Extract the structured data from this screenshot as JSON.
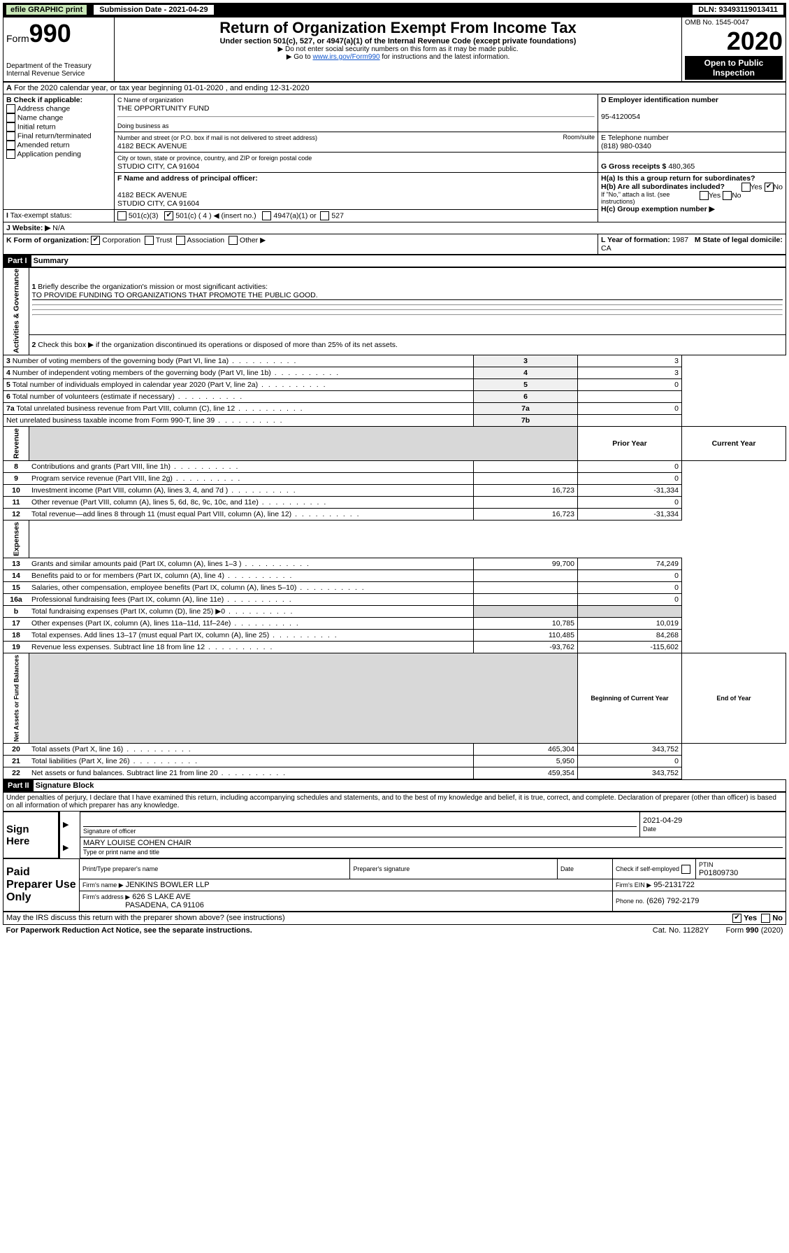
{
  "topbar": {
    "efile": "efile GRAPHIC print",
    "submission": "Submission Date - 2021-04-29",
    "dln": "DLN: 93493119013411"
  },
  "header": {
    "form_prefix": "Form",
    "form_number": "990",
    "title": "Return of Organization Exempt From Income Tax",
    "subtitle": "Under section 501(c), 527, or 4947(a)(1) of the Internal Revenue Code (except private foundations)",
    "note1": "▶ Do not enter social security numbers on this form as it may be made public.",
    "note2_pre": "▶ Go to ",
    "note2_link": "www.irs.gov/Form990",
    "note2_post": " for instructions and the latest information.",
    "dept": "Department of the Treasury\nInternal Revenue Service",
    "omb": "OMB No. 1545-0047",
    "year": "2020",
    "open_public": "Open to Public Inspection"
  },
  "a_line": "For the 2020 calendar year, or tax year beginning 01-01-2020    , and ending 12-31-2020",
  "boxB": {
    "label": "B Check if applicable:",
    "opts": [
      "Address change",
      "Name change",
      "Initial return",
      "Final return/terminated",
      "Amended return",
      "Application pending"
    ]
  },
  "boxC": {
    "label_name": "C Name of organization",
    "org_name": "THE OPPORTUNITY FUND",
    "dba_label": "Doing business as",
    "addr_label": "Number and street (or P.O. box if mail is not delivered to street address)",
    "room_label": "Room/suite",
    "addr": "4182 BECK AVENUE",
    "city_label": "City or town, state or province, country, and ZIP or foreign postal code",
    "city": "STUDIO CITY, CA  91604"
  },
  "boxD": {
    "label": "D Employer identification number",
    "ein": "95-4120054"
  },
  "boxE": {
    "label": "E Telephone number",
    "phone": "(818) 980-0340"
  },
  "boxG": {
    "label": "G Gross receipts $",
    "amount": "480,365"
  },
  "boxF": {
    "label": "F Name and address of principal officer:",
    "addr1": "4182 BECK AVENUE",
    "addr2": "STUDIO CITY, CA  91604"
  },
  "boxH": {
    "a_label": "H(a)  Is this a group return for subordinates?",
    "b_label": "H(b)  Are all subordinates included?",
    "note": "If \"No,\" attach a list. (see instructions)",
    "c_label": "H(c)  Group exemption number ▶",
    "yes": "Yes",
    "no": "No"
  },
  "taxexempt": {
    "label": "Tax-exempt status:",
    "c3": "501(c)(3)",
    "c": "501(c) ( 4 ) ◀ (insert no.)",
    "a1": "4947(a)(1) or",
    "527": "527"
  },
  "website": {
    "label": "Website: ▶",
    "val": "N/A"
  },
  "boxK": {
    "label": "K Form of organization:",
    "corp": "Corporation",
    "trust": "Trust",
    "assoc": "Association",
    "other": "Other ▶"
  },
  "boxL": {
    "label": "L Year of formation:",
    "val": "1987"
  },
  "boxM": {
    "label": "M State of legal domicile:",
    "val": "CA"
  },
  "part1": {
    "label": "Part I",
    "title": "Summary",
    "q1": "Briefly describe the organization's mission or most significant activities:",
    "mission": "TO PROVIDE FUNDING TO ORGANIZATIONS THAT PROMOTE THE PUBLIC GOOD.",
    "q2": "Check this box ▶       if the organization discontinued its operations or disposed of more than 25% of its net assets.",
    "rows_gov": [
      {
        "n": "3",
        "d": "Number of voting members of the governing body (Part VI, line 1a)",
        "c": "3",
        "v": "3"
      },
      {
        "n": "4",
        "d": "Number of independent voting members of the governing body (Part VI, line 1b)",
        "c": "4",
        "v": "3"
      },
      {
        "n": "5",
        "d": "Total number of individuals employed in calendar year 2020 (Part V, line 2a)",
        "c": "5",
        "v": "0"
      },
      {
        "n": "6",
        "d": "Total number of volunteers (estimate if necessary)",
        "c": "6",
        "v": ""
      },
      {
        "n": "7a",
        "d": "Total unrelated business revenue from Part VIII, column (C), line 12",
        "c": "7a",
        "v": "0"
      },
      {
        "n": "",
        "d": "Net unrelated business taxable income from Form 990-T, line 39",
        "c": "7b",
        "v": ""
      }
    ],
    "col_prior": "Prior Year",
    "col_current": "Current Year",
    "rows_rev": [
      {
        "n": "8",
        "d": "Contributions and grants (Part VIII, line 1h)",
        "p": "",
        "c": "0"
      },
      {
        "n": "9",
        "d": "Program service revenue (Part VIII, line 2g)",
        "p": "",
        "c": "0"
      },
      {
        "n": "10",
        "d": "Investment income (Part VIII, column (A), lines 3, 4, and 7d )",
        "p": "16,723",
        "c": "-31,334"
      },
      {
        "n": "11",
        "d": "Other revenue (Part VIII, column (A), lines 5, 6d, 8c, 9c, 10c, and 11e)",
        "p": "",
        "c": "0"
      },
      {
        "n": "12",
        "d": "Total revenue—add lines 8 through 11 (must equal Part VIII, column (A), line 12)",
        "p": "16,723",
        "c": "-31,334"
      }
    ],
    "rows_exp": [
      {
        "n": "13",
        "d": "Grants and similar amounts paid (Part IX, column (A), lines 1–3 )",
        "p": "99,700",
        "c": "74,249"
      },
      {
        "n": "14",
        "d": "Benefits paid to or for members (Part IX, column (A), line 4)",
        "p": "",
        "c": "0"
      },
      {
        "n": "15",
        "d": "Salaries, other compensation, employee benefits (Part IX, column (A), lines 5–10)",
        "p": "",
        "c": "0"
      },
      {
        "n": "16a",
        "d": "Professional fundraising fees (Part IX, column (A), line 11e)",
        "p": "",
        "c": "0"
      },
      {
        "n": "b",
        "d": "Total fundraising expenses (Part IX, column (D), line 25) ▶0",
        "p": "",
        "c": "",
        "gray": true
      },
      {
        "n": "17",
        "d": "Other expenses (Part IX, column (A), lines 11a–11d, 11f–24e)",
        "p": "10,785",
        "c": "10,019"
      },
      {
        "n": "18",
        "d": "Total expenses. Add lines 13–17 (must equal Part IX, column (A), line 25)",
        "p": "110,485",
        "c": "84,268"
      },
      {
        "n": "19",
        "d": "Revenue less expenses. Subtract line 18 from line 12",
        "p": "-93,762",
        "c": "-115,602"
      }
    ],
    "col_begin": "Beginning of Current Year",
    "col_end": "End of Year",
    "rows_net": [
      {
        "n": "20",
        "d": "Total assets (Part X, line 16)",
        "p": "465,304",
        "c": "343,752"
      },
      {
        "n": "21",
        "d": "Total liabilities (Part X, line 26)",
        "p": "5,950",
        "c": "0"
      },
      {
        "n": "22",
        "d": "Net assets or fund balances. Subtract line 21 from line 20",
        "p": "459,354",
        "c": "343,752"
      }
    ],
    "sidelabels": {
      "gov": "Activities & Governance",
      "rev": "Revenue",
      "exp": "Expenses",
      "net": "Net Assets or Fund Balances"
    }
  },
  "part2": {
    "label": "Part II",
    "title": "Signature Block",
    "declaration": "Under penalties of perjury, I declare that I have examined this return, including accompanying schedules and statements, and to the best of my knowledge and belief, it is true, correct, and complete. Declaration of preparer (other than officer) is based on all information of which preparer has any knowledge."
  },
  "sign": {
    "here": "Sign Here",
    "sig_officer": "Signature of officer",
    "date": "2021-04-29",
    "date_label": "Date",
    "name": "MARY LOUISE COHEN CHAIR",
    "name_label": "Type or print name and title"
  },
  "paid": {
    "label": "Paid Preparer Use Only",
    "col1": "Print/Type preparer's name",
    "col2": "Preparer's signature",
    "col3": "Date",
    "col4": "Check        if self-employed",
    "col5_label": "PTIN",
    "ptin": "P01809730",
    "firm_name_label": "Firm's name     ▶",
    "firm_name": "JENKINS BOWLER LLP",
    "firm_ein_label": "Firm's EIN ▶",
    "firm_ein": "95-2131722",
    "firm_addr_label": "Firm's address ▶",
    "firm_addr": "626 S LAKE AVE",
    "firm_city": "PASADENA, CA  91106",
    "firm_phone_label": "Phone no.",
    "firm_phone": "(626) 792-2179"
  },
  "footer": {
    "discuss": "May the IRS discuss this return with the preparer shown above? (see instructions)",
    "yes": "Yes",
    "no": "No",
    "paperwork": "For Paperwork Reduction Act Notice, see the separate instructions.",
    "cat": "Cat. No. 11282Y",
    "form": "Form 990 (2020)"
  }
}
